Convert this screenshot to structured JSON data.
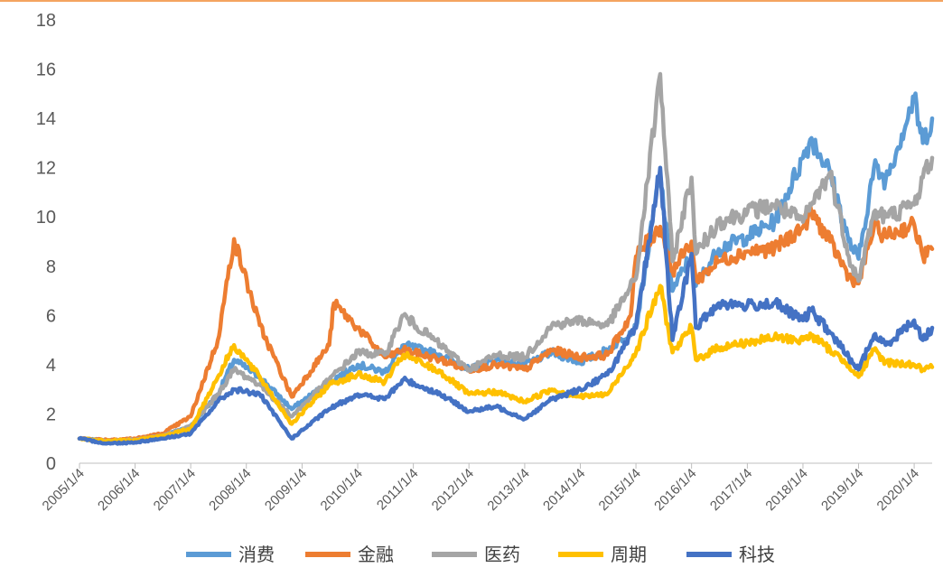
{
  "colors": {
    "top_border": "#F4A460",
    "axis": "#BFBFBF"
  },
  "chart_data": {
    "type": "line",
    "title": "",
    "xlabel": "",
    "ylabel": "",
    "ylim": [
      0,
      18
    ],
    "yticks": [
      0,
      2,
      4,
      6,
      8,
      10,
      12,
      14,
      16,
      18
    ],
    "xlim": [
      "2005/1/4",
      "2020/5/1"
    ],
    "xticks": [
      "2005/1/4",
      "2006/1/4",
      "2007/1/4",
      "2008/1/4",
      "2009/1/4",
      "2010/1/4",
      "2011/1/4",
      "2012/1/4",
      "2013/1/4",
      "2014/1/4",
      "2015/1/4",
      "2016/1/4",
      "2017/1/4",
      "2018/1/4",
      "2019/1/4",
      "2020/1/4"
    ],
    "grid": false,
    "legend_position": "bottom",
    "series": [
      {
        "name": "消费",
        "color": "#5B9BD5",
        "x": [
          "2005/1/4",
          "2005/7/1",
          "2006/1/4",
          "2006/7/1",
          "2007/1/4",
          "2007/7/1",
          "2007/10/15",
          "2008/4/1",
          "2008/10/28",
          "2009/7/1",
          "2010/1/4",
          "2010/7/1",
          "2010/11/1",
          "2011/7/1",
          "2012/1/4",
          "2012/7/1",
          "2013/1/4",
          "2013/7/1",
          "2014/1/4",
          "2014/7/1",
          "2015/1/4",
          "2015/6/12",
          "2015/9/1",
          "2016/1/4",
          "2016/2/1",
          "2016/7/1",
          "2017/1/4",
          "2017/7/1",
          "2018/1/4",
          "2018/3/1",
          "2018/7/1",
          "2018/11/1",
          "2019/1/4",
          "2019/4/15",
          "2019/7/1",
          "2020/1/4",
          "2020/3/1",
          "2020/5/1"
        ],
        "values": [
          1.0,
          0.9,
          0.95,
          1.1,
          1.5,
          2.8,
          4.2,
          3.5,
          2.2,
          3.3,
          4.0,
          3.7,
          4.8,
          4.4,
          3.8,
          4.2,
          4.0,
          4.5,
          4.1,
          4.6,
          5.5,
          11.8,
          7.0,
          8.5,
          7.2,
          8.7,
          9.2,
          9.8,
          12.4,
          13.2,
          11.8,
          9.0,
          8.3,
          12.0,
          11.5,
          14.8,
          13.0,
          14.0
        ]
      },
      {
        "name": "金融",
        "color": "#ED7D31",
        "x": [
          "2005/1/4",
          "2005/7/1",
          "2006/1/4",
          "2006/7/1",
          "2007/1/4",
          "2007/7/1",
          "2007/10/15",
          "2008/4/1",
          "2008/10/28",
          "2009/7/1",
          "2009/8/1",
          "2010/1/4",
          "2010/7/1",
          "2010/11/1",
          "2011/7/1",
          "2012/1/4",
          "2012/7/1",
          "2013/1/4",
          "2013/7/1",
          "2014/1/4",
          "2014/7/1",
          "2014/12/1",
          "2015/1/4",
          "2015/6/12",
          "2015/9/1",
          "2016/1/4",
          "2016/2/1",
          "2016/7/1",
          "2017/1/4",
          "2017/7/1",
          "2018/1/4",
          "2018/3/1",
          "2018/7/1",
          "2018/11/1",
          "2019/1/4",
          "2019/4/15",
          "2019/7/1",
          "2020/1/4",
          "2020/3/1",
          "2020/5/1"
        ],
        "values": [
          1.0,
          0.95,
          1.0,
          1.2,
          1.9,
          5.0,
          9.1,
          5.6,
          2.7,
          4.8,
          6.5,
          5.5,
          4.3,
          4.6,
          4.2,
          3.8,
          4.0,
          3.8,
          4.6,
          4.3,
          4.4,
          6.0,
          8.4,
          9.6,
          7.8,
          9.0,
          7.4,
          8.2,
          8.6,
          8.7,
          9.6,
          10.2,
          9.0,
          7.6,
          7.3,
          9.6,
          9.2,
          9.7,
          8.4,
          8.7
        ]
      },
      {
        "name": "医药",
        "color": "#A5A5A5",
        "x": [
          "2005/1/4",
          "2005/7/1",
          "2006/1/4",
          "2006/7/1",
          "2007/1/4",
          "2007/7/1",
          "2007/10/15",
          "2008/4/1",
          "2008/10/28",
          "2009/7/1",
          "2010/1/4",
          "2010/7/1",
          "2010/11/1",
          "2011/7/1",
          "2012/1/4",
          "2012/7/1",
          "2013/1/4",
          "2013/7/1",
          "2014/1/4",
          "2014/7/1",
          "2015/1/4",
          "2015/6/12",
          "2015/9/1",
          "2016/1/4",
          "2016/2/1",
          "2016/7/1",
          "2017/1/4",
          "2017/7/1",
          "2018/1/4",
          "2018/3/1",
          "2018/7/1",
          "2018/11/1",
          "2019/1/4",
          "2019/4/15",
          "2019/7/1",
          "2020/1/4",
          "2020/3/1",
          "2020/5/1"
        ],
        "values": [
          1.0,
          0.9,
          0.95,
          1.1,
          1.5,
          2.8,
          3.8,
          3.2,
          1.9,
          3.4,
          4.5,
          4.4,
          6.0,
          4.8,
          3.8,
          4.4,
          4.3,
          5.6,
          5.8,
          5.6,
          7.5,
          15.8,
          8.2,
          11.6,
          8.5,
          9.8,
          10.2,
          10.5,
          9.8,
          10.5,
          11.8,
          8.4,
          7.4,
          10.2,
          10.0,
          10.5,
          11.6,
          12.4
        ]
      },
      {
        "name": "周期",
        "color": "#FFC000",
        "x": [
          "2005/1/4",
          "2005/7/1",
          "2006/1/4",
          "2006/7/1",
          "2007/1/4",
          "2007/7/1",
          "2007/10/15",
          "2008/4/1",
          "2008/10/28",
          "2009/7/1",
          "2010/1/4",
          "2010/7/1",
          "2010/11/1",
          "2011/7/1",
          "2012/1/4",
          "2012/7/1",
          "2013/1/4",
          "2013/7/1",
          "2014/1/4",
          "2014/7/1",
          "2015/1/4",
          "2015/6/12",
          "2015/9/1",
          "2016/1/4",
          "2016/2/1",
          "2016/7/1",
          "2017/1/4",
          "2017/7/1",
          "2018/1/4",
          "2018/3/1",
          "2018/7/1",
          "2018/11/1",
          "2019/1/4",
          "2019/4/15",
          "2019/7/1",
          "2020/1/4",
          "2020/3/1",
          "2020/5/1"
        ],
        "values": [
          1.0,
          0.9,
          0.95,
          1.1,
          1.4,
          3.5,
          4.8,
          3.5,
          1.6,
          3.2,
          3.6,
          3.3,
          4.4,
          3.7,
          2.8,
          2.9,
          2.5,
          3.0,
          2.7,
          2.8,
          4.5,
          7.2,
          4.5,
          5.5,
          4.2,
          4.7,
          4.9,
          5.1,
          5.0,
          5.2,
          4.6,
          4.0,
          3.5,
          4.6,
          4.1,
          4.0,
          3.8,
          3.9
        ]
      },
      {
        "name": "科技",
        "color": "#4472C4",
        "x": [
          "2005/1/4",
          "2005/7/1",
          "2006/1/4",
          "2006/7/1",
          "2007/1/4",
          "2007/7/1",
          "2007/10/15",
          "2008/4/1",
          "2008/10/28",
          "2009/7/1",
          "2010/1/4",
          "2010/7/1",
          "2010/11/1",
          "2011/7/1",
          "2012/1/4",
          "2012/7/1",
          "2013/1/4",
          "2013/7/1",
          "2014/1/4",
          "2014/7/1",
          "2015/1/4",
          "2015/6/12",
          "2015/9/1",
          "2016/1/4",
          "2016/2/1",
          "2016/7/1",
          "2017/1/4",
          "2017/7/1",
          "2018/1/4",
          "2018/3/1",
          "2018/7/1",
          "2018/11/1",
          "2019/1/4",
          "2019/4/15",
          "2019/7/1",
          "2020/1/4",
          "2020/3/1",
          "2020/5/1"
        ],
        "values": [
          1.0,
          0.8,
          0.85,
          1.0,
          1.2,
          2.5,
          3.0,
          2.8,
          1.0,
          2.2,
          2.8,
          2.6,
          3.4,
          2.8,
          2.1,
          2.3,
          1.8,
          2.6,
          3.0,
          3.6,
          5.5,
          12.0,
          5.0,
          8.5,
          5.5,
          6.5,
          6.4,
          6.5,
          5.8,
          6.2,
          5.3,
          4.3,
          3.8,
          5.2,
          4.8,
          5.8,
          5.0,
          5.5
        ]
      }
    ]
  }
}
